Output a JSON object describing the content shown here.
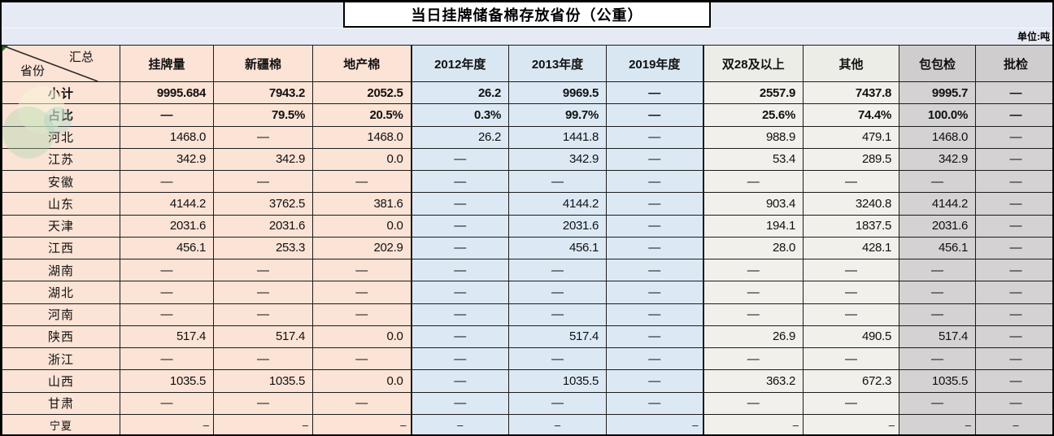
{
  "title": "当日挂牌储备棉存放省份（公重）",
  "unit_label": "单位:吨",
  "colors": {
    "peach": "#fbe3d5",
    "blue": "#dce9f5",
    "ivory": "#f1f0eb",
    "gray": "#d4d2d2",
    "header_blue": "#d9e7f3",
    "header_ivory": "#ededE7",
    "header_gray": "#cfcdcd",
    "band": "#e6eaf4",
    "triangle_green": "#1f7a1f"
  },
  "chart_data": {
    "type": "table",
    "title": "当日挂牌储备棉存放省份（公重）",
    "unit": "单位:吨",
    "corner": {
      "top_right": "汇总",
      "bottom_left": "省份"
    },
    "columns": [
      {
        "label": "挂牌量",
        "group": "peach"
      },
      {
        "label": "新疆棉",
        "group": "peach"
      },
      {
        "label": "地产棉",
        "group": "peach"
      },
      {
        "label": "2012年度",
        "group": "blue",
        "sep": true
      },
      {
        "label": "2013年度",
        "group": "blue"
      },
      {
        "label": "2019年度",
        "group": "blue"
      },
      {
        "label": "双28及以上",
        "group": "ivory",
        "sep": true
      },
      {
        "label": "其他",
        "group": "ivory"
      },
      {
        "label": "包包检",
        "group": "gray"
      },
      {
        "label": "批检",
        "group": "gray"
      }
    ],
    "rows": [
      {
        "label": "小计",
        "bold": true,
        "values": [
          "9995.684",
          "7943.2",
          "2052.5",
          "26.2",
          "9969.5",
          "—",
          "2557.9",
          "7437.8",
          "9995.7",
          "—"
        ]
      },
      {
        "label": "占比",
        "bold": true,
        "values": [
          "—",
          "79.5%",
          "20.5%",
          "0.3%",
          "99.7%",
          "—",
          "25.6%",
          "74.4%",
          "100.0%",
          "—"
        ]
      },
      {
        "label": "河北",
        "values": [
          "1468.0",
          "—",
          "1468.0",
          "26.2",
          "1441.8",
          "—",
          "988.9",
          "479.1",
          "1468.0",
          "—"
        ]
      },
      {
        "label": "江苏",
        "values": [
          "342.9",
          "342.9",
          "0.0",
          "—",
          "342.9",
          "—",
          "53.4",
          "289.5",
          "342.9",
          "—"
        ]
      },
      {
        "label": "安徽",
        "values": [
          "—",
          "—",
          "—",
          "—",
          "—",
          "—",
          "—",
          "—",
          "—",
          "—"
        ]
      },
      {
        "label": "山东",
        "values": [
          "4144.2",
          "3762.5",
          "381.6",
          "—",
          "4144.2",
          "—",
          "903.4",
          "3240.8",
          "4144.2",
          "—"
        ]
      },
      {
        "label": "天津",
        "values": [
          "2031.6",
          "2031.6",
          "0.0",
          "—",
          "2031.6",
          "—",
          "194.1",
          "1837.5",
          "2031.6",
          "—"
        ]
      },
      {
        "label": "江西",
        "values": [
          "456.1",
          "253.3",
          "202.9",
          "—",
          "456.1",
          "—",
          "28.0",
          "428.1",
          "456.1",
          "—"
        ]
      },
      {
        "label": "湖南",
        "values": [
          "—",
          "—",
          "—",
          "—",
          "—",
          "—",
          "—",
          "—",
          "—",
          "—"
        ]
      },
      {
        "label": "湖北",
        "values": [
          "—",
          "—",
          "—",
          "—",
          "—",
          "—",
          "—",
          "—",
          "—",
          "—"
        ]
      },
      {
        "label": "河南",
        "values": [
          "—",
          "—",
          "—",
          "—",
          "—",
          "—",
          "—",
          "—",
          "—",
          "—"
        ]
      },
      {
        "label": "陕西",
        "values": [
          "517.4",
          "517.4",
          "0.0",
          "—",
          "517.4",
          "—",
          "26.9",
          "490.5",
          "517.4",
          "—"
        ]
      },
      {
        "label": "浙江",
        "values": [
          "—",
          "—",
          "—",
          "—",
          "—",
          "—",
          "—",
          "—",
          "—",
          "—"
        ]
      },
      {
        "label": "山西",
        "values": [
          "1035.5",
          "1035.5",
          "0.0",
          "—",
          "1035.5",
          "—",
          "363.2",
          "672.3",
          "1035.5",
          "—"
        ]
      },
      {
        "label": "甘肃",
        "values": [
          "—",
          "—",
          "—",
          "—",
          "—",
          "—",
          "—",
          "—",
          "—",
          "—"
        ]
      },
      {
        "label": "宁夏",
        "small": true,
        "values": [
          "–",
          "–",
          "–",
          "–",
          "–",
          "–",
          "–",
          "–",
          "–",
          "–"
        ],
        "aligns": [
          "right",
          "right",
          "right",
          "center",
          "center",
          "right",
          "right",
          "right",
          "right",
          "center"
        ]
      }
    ]
  }
}
